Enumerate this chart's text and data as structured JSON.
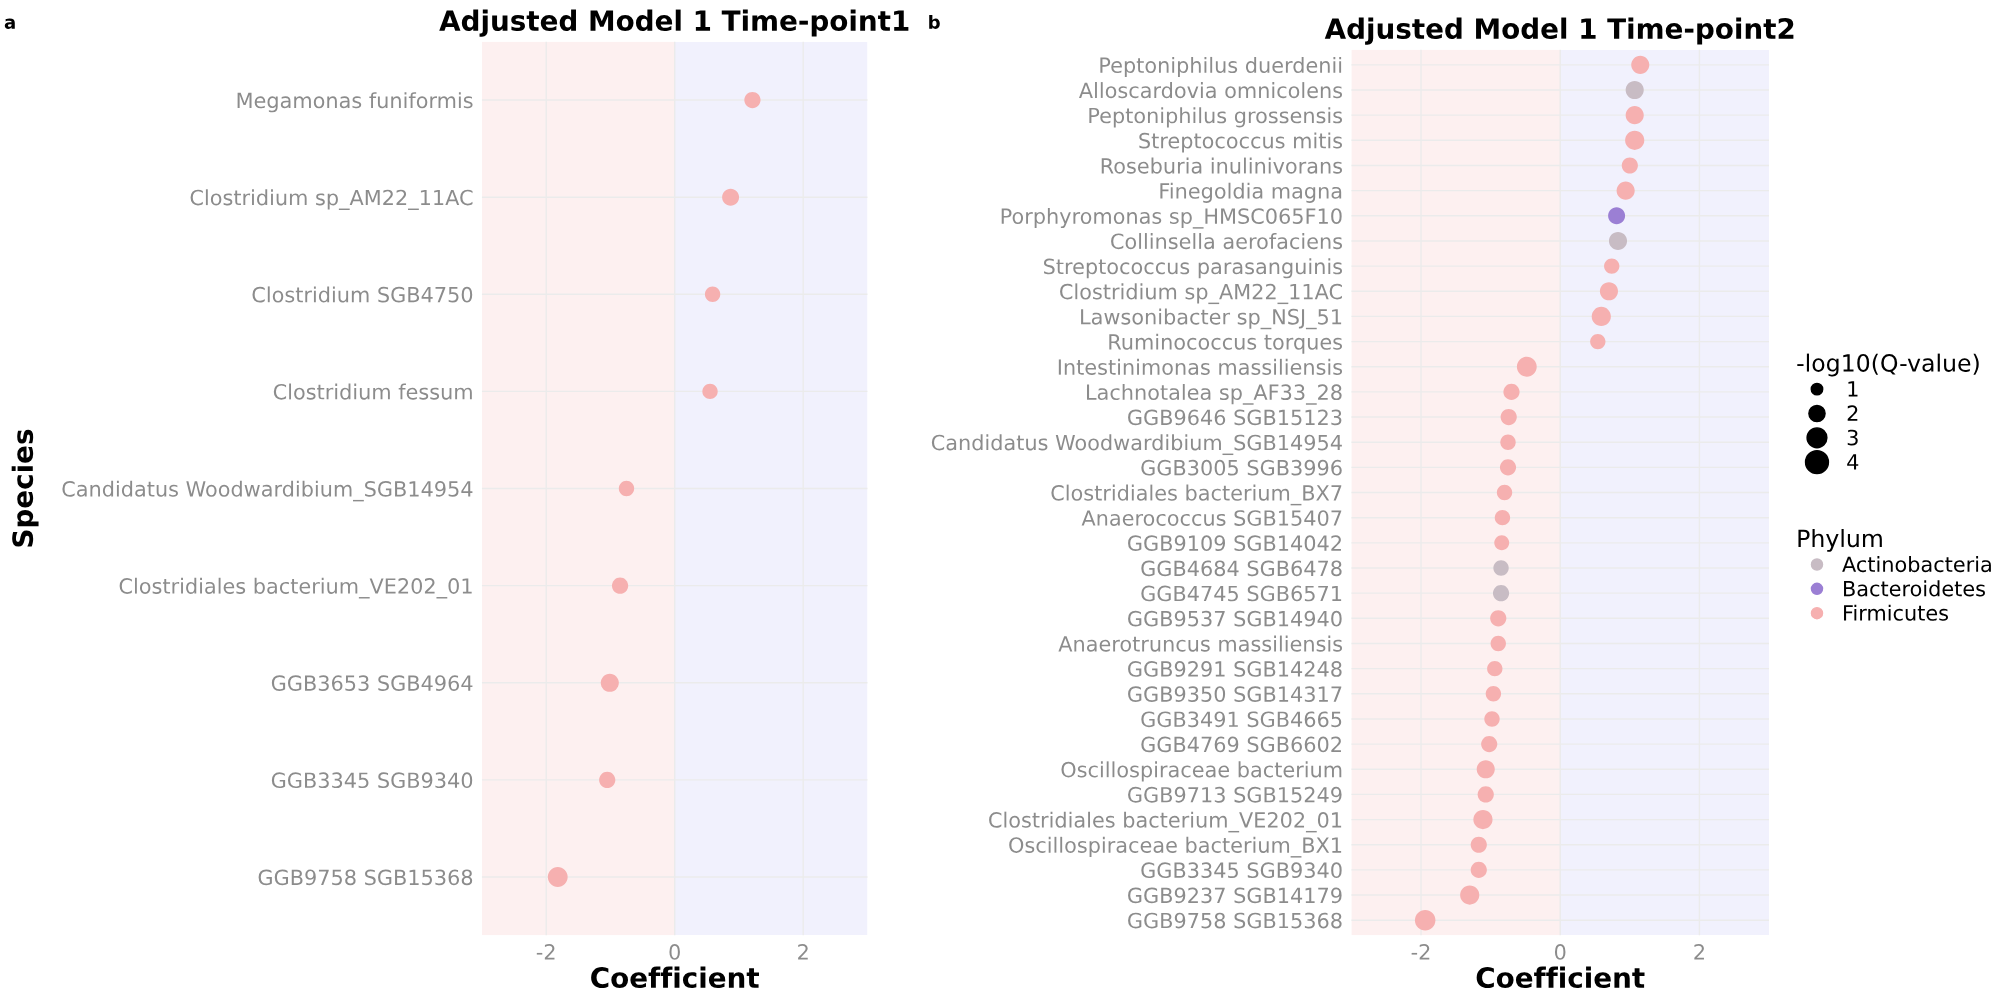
{
  "chart_data": [
    {
      "type": "bubble",
      "title": "Adjusted Model 1 Time-point1",
      "xlabel": "Coefficient",
      "ylabel": "Species",
      "annotations": [
        "a"
      ],
      "categories": [
        "Megamonas funiformis",
        "Clostridium sp_AM22_11AC",
        "Clostridium SGB4750",
        "Clostridium fessum",
        "Candidatus Woodwardibium_SGB14954",
        "Clostridiales bacterium_VE202_01",
        "GGB3653 SGB4964",
        "GGB3345 SGB9340",
        "GGB9758 SGB15368"
      ],
      "series": [
        {
          "color": "#f6b0b0",
          "values": [
            1.21,
            0.87,
            0.59,
            0.55,
            -0.75,
            -0.85,
            -1.01,
            -1.05,
            -1.82
          ],
          "sizes": [
            0.67,
            0.73,
            0.6,
            0.6,
            0.6,
            0.67,
            0.83,
            0.67,
            1
          ]
        }
      ],
      "orientation": "horizontal",
      "xlim": [
        -3,
        3
      ],
      "xticks": [
        -2,
        0,
        2
      ],
      "grid": true,
      "legend": false,
      "bands": [
        {
          "axis": "x",
          "from": -3,
          "to": 0,
          "color": "#fdf0f0"
        },
        {
          "axis": "x",
          "from": 0,
          "to": 3,
          "color": "#f1f1fd"
        }
      ]
    },
    {
      "type": "bubble",
      "title": "Adjusted Model 1 Time-point2",
      "xlabel": "Coefficient",
      "annotations": [
        "b",
        "-log10(Q-value)"
      ],
      "legend_title": "Phylum",
      "categories": [
        "Peptoniphilus duerdenii",
        "Alloscardovia omnicolens",
        "Peptoniphilus grossensis",
        "Streptococcus mitis",
        "Roseburia inulinivorans",
        "Finegoldia magna",
        "Porphyromonas sp_HMSC065F10",
        "Collinsella aerofaciens",
        "Streptococcus parasanguinis",
        "Clostridium sp_AM22_11AC",
        "Lawsonibacter sp_NSJ_51",
        "Ruminococcus torques",
        "Intestinimonas massiliensis",
        "Lachnotalea sp_AF33_28",
        "GGB9646 SGB15123",
        "Candidatus Woodwardibium_SGB14954",
        "GGB3005 SGB3996",
        "Clostridiales bacterium_BX7",
        "Anaerococcus SGB15407",
        "GGB9109 SGB14042",
        "GGB4684 SGB6478",
        "GGB4745 SGB6571",
        "GGB9537 SGB14940",
        "Anaerotruncus massiliensis",
        "GGB9291 SGB14248",
        "GGB9350 SGB14317",
        "GGB3491 SGB4665",
        "GGB4769 SGB6602",
        "Oscillospiraceae bacterium",
        "GGB9713 SGB15249",
        "Clostridiales bacterium_VE202_01",
        "Oscillospiraceae bacterium_BX1",
        "GGB3345 SGB9340",
        "GGB9237 SGB14179",
        "GGB9758 SGB15368"
      ],
      "series": [
        {
          "name": "Actinobacteria",
          "color": "#c8bcc4",
          "values": [
            null,
            1.07,
            null,
            null,
            null,
            null,
            null,
            0.83,
            null,
            null,
            null,
            null,
            null,
            null,
            null,
            null,
            null,
            null,
            null,
            null,
            -0.85,
            -0.85,
            null,
            null,
            null,
            null,
            null,
            null,
            null,
            null,
            null,
            null,
            null,
            null,
            null
          ],
          "sizes": [
            null,
            2.5,
            null,
            null,
            null,
            null,
            null,
            2.5,
            null,
            null,
            null,
            null,
            null,
            null,
            null,
            null,
            null,
            null,
            null,
            null,
            1.8,
            2,
            null,
            null,
            null,
            null,
            null,
            null,
            null,
            null,
            null,
            null,
            null,
            null,
            null
          ]
        },
        {
          "name": "Bacteroidetes",
          "color": "#9b7fd4",
          "values": [
            null,
            null,
            null,
            null,
            null,
            null,
            0.81,
            null,
            null,
            null,
            null,
            null,
            null,
            null,
            null,
            null,
            null,
            null,
            null,
            null,
            null,
            null,
            null,
            null,
            null,
            null,
            null,
            null,
            null,
            null,
            null,
            null,
            null,
            null,
            null
          ],
          "sizes": [
            null,
            null,
            null,
            null,
            null,
            null,
            2.2,
            null,
            null,
            null,
            null,
            null,
            null,
            null,
            null,
            null,
            null,
            null,
            null,
            null,
            null,
            null,
            null,
            null,
            null,
            null,
            null,
            null,
            null,
            null,
            null,
            null,
            null,
            null,
            null
          ]
        },
        {
          "name": "Firmicutes",
          "color": "#f6b0b0",
          "values": [
            1.15,
            null,
            1.07,
            1.07,
            1.0,
            0.94,
            null,
            null,
            0.74,
            0.7,
            0.59,
            0.54,
            -0.48,
            -0.7,
            -0.74,
            -0.75,
            -0.75,
            -0.8,
            -0.83,
            -0.84,
            null,
            null,
            -0.89,
            -0.89,
            -0.94,
            -0.96,
            -0.98,
            -1.02,
            -1.07,
            -1.07,
            -1.11,
            -1.17,
            -1.17,
            -1.3,
            -1.94
          ],
          "sizes": [
            2.5,
            null,
            2.5,
            2.8,
            2,
            2.5,
            null,
            null,
            1.8,
            2.5,
            2.8,
            1.8,
            3,
            2,
            2,
            1.8,
            2,
            1.8,
            1.8,
            1.7,
            null,
            null,
            2,
            1.8,
            1.8,
            1.8,
            1.8,
            2,
            2.5,
            2,
            2.8,
            2,
            2,
            2.8,
            3.2
          ]
        }
      ],
      "size_legend": [
        1,
        2,
        3,
        4
      ],
      "orientation": "horizontal",
      "xlim": [
        -3,
        3
      ],
      "xticks": [
        -2,
        0,
        2
      ],
      "grid": true,
      "legend": "right",
      "bands": [
        {
          "axis": "x",
          "from": -3,
          "to": 0,
          "color": "#fdf0f0"
        },
        {
          "axis": "x",
          "from": 0,
          "to": 3,
          "color": "#f1f1fd"
        }
      ]
    }
  ]
}
